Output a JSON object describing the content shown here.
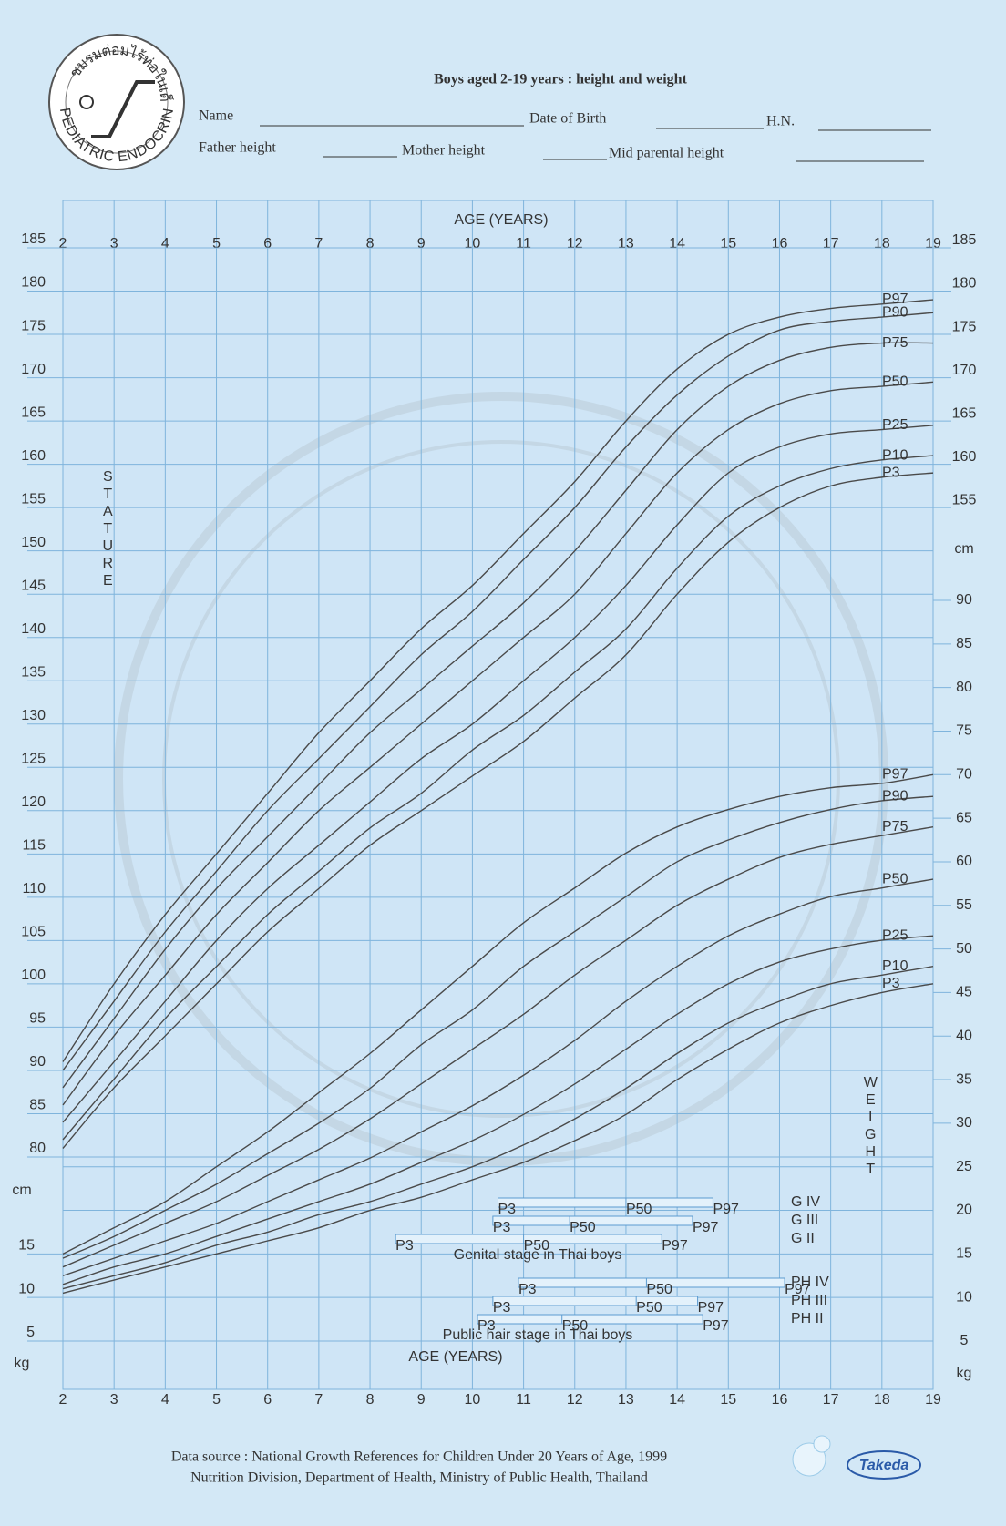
{
  "header": {
    "society": "PEDIATRIC ENDOCRINE SOCIETY OF THAILAND",
    "society_thai": "ชมรมต่อมไร้ท่อในเด็ก",
    "title": "Boys aged 2-19 years : height and weight",
    "fields": [
      "Name",
      "Date of Birth",
      "H.N.",
      "Father height",
      "Mother height",
      "Mid parental height"
    ]
  },
  "chart_data": [
    {
      "type": "line",
      "axis_title": "STATURE",
      "x_title": "AGE (YEARS)",
      "unit": "cm",
      "x": [
        2,
        3,
        4,
        5,
        6,
        7,
        8,
        9,
        10,
        11,
        12,
        13,
        14,
        15,
        16,
        17,
        18,
        19
      ],
      "xlim": [
        2,
        19
      ],
      "xticks": [
        2,
        3,
        4,
        5,
        6,
        7,
        8,
        9,
        10,
        11,
        12,
        13,
        14,
        15,
        16,
        17,
        18,
        19
      ],
      "ylim": [
        80,
        185
      ],
      "yticks": [
        80,
        85,
        90,
        95,
        100,
        105,
        110,
        115,
        120,
        125,
        130,
        135,
        140,
        145,
        150,
        155,
        160,
        165,
        170,
        175,
        180,
        185
      ],
      "yticks_right": [
        155,
        160,
        165,
        170,
        175,
        180,
        185
      ],
      "grid": true,
      "series": [
        {
          "name": "P97",
          "color": "#4a4a4a",
          "values": [
            91,
            100,
            108,
            115,
            122,
            129,
            135,
            141,
            146,
            152,
            158,
            165,
            171,
            175,
            177,
            178,
            178.5,
            179
          ]
        },
        {
          "name": "P90",
          "color": "#4a4a4a",
          "values": [
            90,
            98,
            106,
            113,
            120,
            126,
            132,
            138,
            143,
            149,
            155,
            162,
            168,
            172.5,
            175.5,
            176.5,
            177,
            177.5
          ]
        },
        {
          "name": "P75",
          "color": "#4a4a4a",
          "values": [
            88,
            96,
            104,
            111,
            117,
            123,
            129,
            134,
            139,
            144,
            150,
            157,
            164,
            169,
            172,
            173.5,
            174,
            174
          ]
        },
        {
          "name": "P50",
          "color": "#4a4a4a",
          "values": [
            86,
            94,
            101,
            108,
            114,
            120,
            125,
            130,
            135,
            140,
            145,
            152,
            159,
            164,
            167,
            168.5,
            169,
            169.5
          ]
        },
        {
          "name": "P25",
          "color": "#4a4a4a",
          "values": [
            84,
            91,
            98,
            105,
            111,
            116,
            121,
            126,
            130,
            135,
            140,
            146,
            153,
            159,
            162,
            163.5,
            164,
            164.5
          ]
        },
        {
          "name": "P10",
          "color": "#4a4a4a",
          "values": [
            82,
            89,
            96,
            102,
            108,
            113,
            118,
            122,
            127,
            131,
            136,
            141,
            148,
            154,
            157.5,
            159.5,
            160.5,
            161
          ]
        },
        {
          "name": "P3",
          "color": "#4a4a4a",
          "values": [
            81,
            88,
            94,
            100,
            106,
            111,
            116,
            120,
            124,
            128,
            133,
            138,
            145,
            151,
            155,
            157.5,
            158.5,
            159
          ]
        }
      ]
    },
    {
      "type": "line",
      "axis_title": "WEIGHT",
      "x_title": "AGE (YEARS)",
      "unit": "kg",
      "x": [
        2,
        3,
        4,
        5,
        6,
        7,
        8,
        9,
        10,
        11,
        12,
        13,
        14,
        15,
        16,
        17,
        18,
        19
      ],
      "xlim": [
        2,
        19
      ],
      "xticks": [
        2,
        3,
        4,
        5,
        6,
        7,
        8,
        9,
        10,
        11,
        12,
        13,
        14,
        15,
        16,
        17,
        18,
        19
      ],
      "ylim": [
        5,
        90
      ],
      "yticks": [
        5,
        10,
        15,
        20,
        25,
        30,
        35,
        40,
        45,
        50,
        55,
        60,
        65,
        70,
        75,
        80,
        85,
        90
      ],
      "yticks_left": [
        5,
        10,
        15
      ],
      "grid": true,
      "series": [
        {
          "name": "P97",
          "color": "#4a4a4a",
          "values": [
            15,
            18,
            21,
            25,
            29,
            33.5,
            38,
            43,
            48,
            53,
            57,
            61,
            64,
            66,
            67.5,
            68.5,
            69,
            70
          ]
        },
        {
          "name": "P90",
          "color": "#4a4a4a",
          "values": [
            14.5,
            17,
            20,
            23,
            26.5,
            30,
            34,
            39,
            43,
            48,
            52,
            56,
            60,
            62.5,
            64.5,
            66,
            67,
            67.5
          ]
        },
        {
          "name": "P75",
          "color": "#4a4a4a",
          "values": [
            13.5,
            16,
            18.5,
            21,
            24,
            27,
            30.5,
            34.5,
            38.5,
            42.5,
            47,
            51,
            55,
            58,
            60.5,
            62,
            63,
            64
          ]
        },
        {
          "name": "P50",
          "color": "#4a4a4a",
          "values": [
            12.5,
            14.5,
            16.5,
            18.5,
            21,
            23.5,
            26,
            29,
            32,
            35.5,
            39.5,
            44,
            48,
            51.5,
            54,
            56,
            57,
            58
          ]
        },
        {
          "name": "P25",
          "color": "#4a4a4a",
          "values": [
            11.5,
            13.5,
            15,
            17,
            19,
            21,
            23,
            25.5,
            28,
            31,
            34.5,
            38.5,
            42.5,
            46,
            48.5,
            50,
            51,
            51.5
          ]
        },
        {
          "name": "P10",
          "color": "#4a4a4a",
          "values": [
            11,
            12.5,
            14,
            16,
            17.5,
            19.5,
            21,
            23,
            25,
            27.5,
            30.5,
            34,
            38,
            41.5,
            44,
            46,
            47,
            48
          ]
        },
        {
          "name": "P3",
          "color": "#4a4a4a",
          "values": [
            10.5,
            12,
            13.5,
            15,
            16.5,
            18,
            20,
            21.5,
            23.5,
            25.5,
            28,
            31,
            35,
            38.5,
            41.5,
            43.5,
            45,
            46
          ]
        }
      ]
    }
  ],
  "puberty": {
    "pct_labels": [
      "P3",
      "P50",
      "P97"
    ],
    "genital": {
      "title": "Genital stage in Thai boys",
      "stages": [
        {
          "name": "G IV",
          "p3": 10.5,
          "p50": 13,
          "p97": 14.7
        },
        {
          "name": "G III",
          "p3": 10.4,
          "p50": 11.9,
          "p97": 14.3
        },
        {
          "name": "G II",
          "p3": 8.5,
          "p50": 11,
          "p97": 13.7
        }
      ]
    },
    "pubic": {
      "title": "Public hair stage in Thai boys",
      "stages": [
        {
          "name": "PH IV",
          "p3": 10.9,
          "p50": 13.4,
          "p97": 16.1
        },
        {
          "name": "PH III",
          "p3": 10.4,
          "p50": 13.2,
          "p97": 14.4
        },
        {
          "name": "PH II",
          "p3": 10.1,
          "p50": 11.75,
          "p97": 14.5
        }
      ]
    }
  },
  "footer": {
    "source": "Data source : National Growth References for Children Under 20 Years of Age, 1999",
    "org": "Nutrition Division, Department of Health, Ministry of Public Health, Thailand",
    "brand": "Takeda"
  }
}
